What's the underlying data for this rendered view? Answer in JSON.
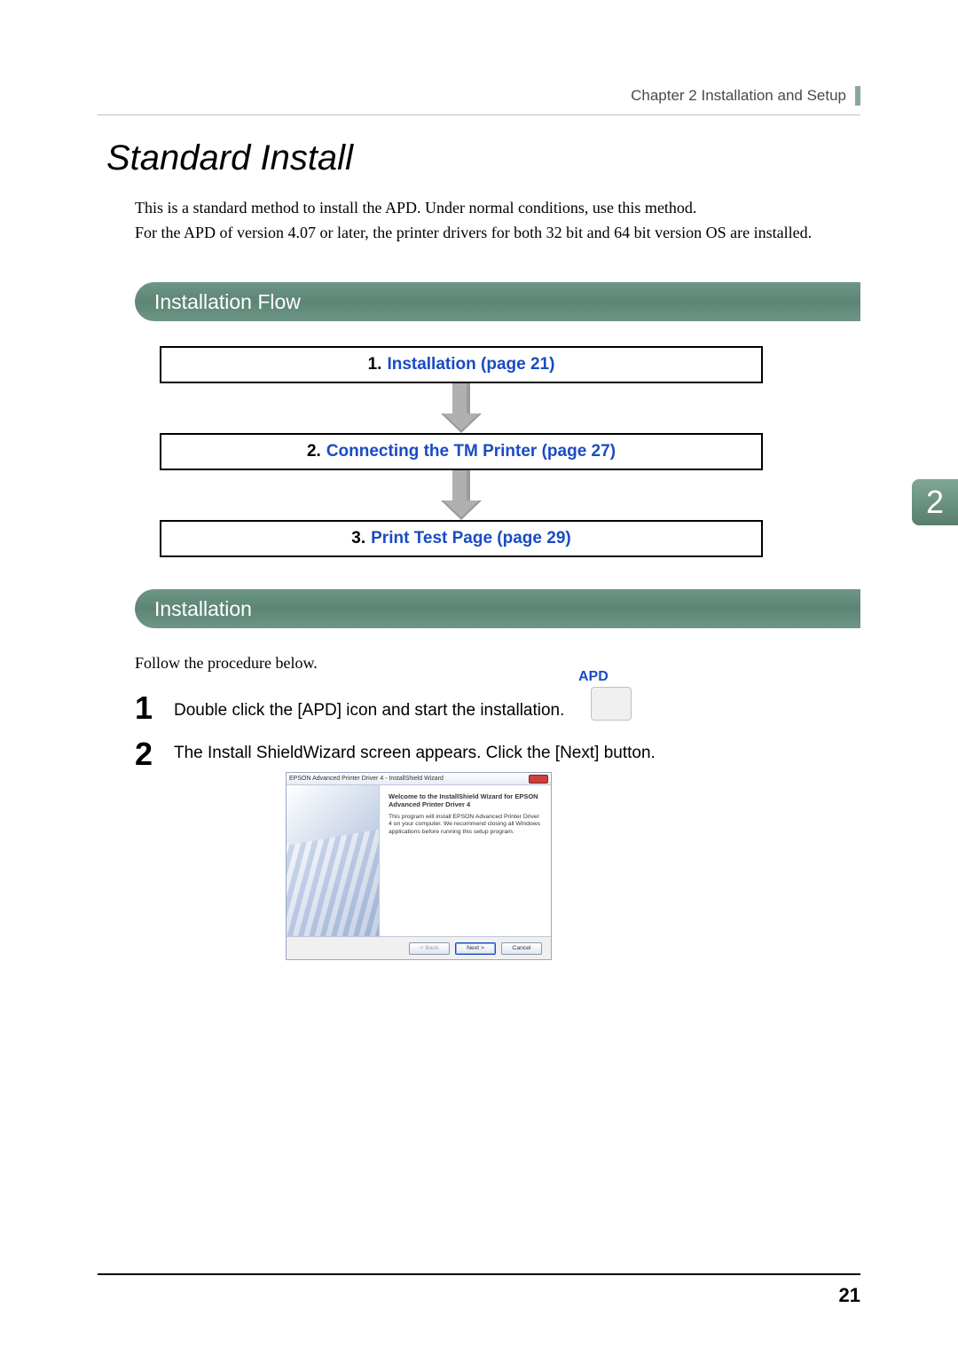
{
  "header": {
    "chapter_text": "Chapter 2   Installation and Setup",
    "bar_color": "#8aa89a"
  },
  "title": "Standard Install",
  "intro_lines": [
    "This is a standard method to install the APD. Under normal conditions, use this method.",
    "For the APD of version 4.07 or later, the printer drivers for both 32 bit and 64 bit version OS are installed."
  ],
  "section1": "Installation Flow",
  "section2": "Installation",
  "flow": {
    "steps": [
      {
        "num": "1.",
        "label": "Installation (page 21)"
      },
      {
        "num": "2.",
        "label": "Connecting the TM Printer (page 27)"
      },
      {
        "num": "3.",
        "label": "Print Test Page (page 29)"
      }
    ],
    "link_color": "#1a4bc4"
  },
  "chapter_tab": "2",
  "follow_text": "Follow the procedure below.",
  "steps_body": {
    "s1_num": "1",
    "s1_text": "Double click the [APD] icon and start the installation.",
    "s2_num": "2",
    "s2_text": "The Install ShieldWizard screen appears. Click the [Next] button."
  },
  "apd_icon_label": "APD",
  "dialog": {
    "title": "EPSON Advanced Printer Driver 4 - InstallShield Wizard",
    "welcome_title": "Welcome to the InstallShield Wizard for EPSON Advanced Printer Driver 4",
    "welcome_text": "This program will install EPSON Advanced Printer Driver 4 on your computer. We recommend closing all Windows applications before running this setup program.",
    "btn_back": "< Back",
    "btn_next": "Next >",
    "btn_cancel": "Cancel"
  },
  "page_number": "21",
  "colors": {
    "section_bar_bg": "#6e9686",
    "chapter_tab_bg": "#6e9686",
    "text": "#000000"
  }
}
